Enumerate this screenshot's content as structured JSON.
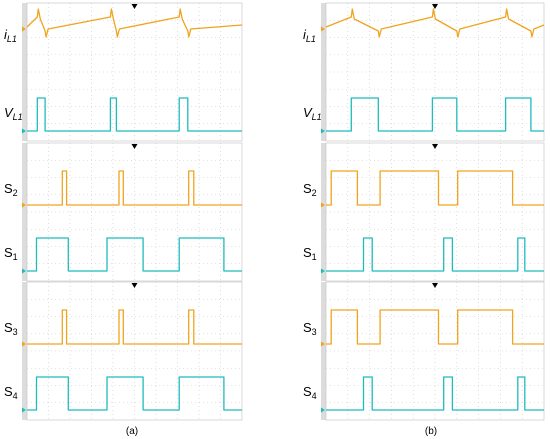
{
  "chart_data": [
    {
      "type": "line",
      "panel": "a",
      "caption": "(a)",
      "plots": [
        {
          "signals": [
            {
              "label": "iL1",
              "base": "i",
              "sub": "L1",
              "italic": true,
              "color": "#f0a31e",
              "shape": "ripple",
              "edges_on": [
                0.42,
                2.08,
                3.74
              ],
              "edges_off": [
                0.24,
                1.94,
                3.54
              ]
            },
            {
              "label": "VL1",
              "base": "V",
              "sub": "L1",
              "italic": true,
              "color": "#1fbcbc",
              "shape": "pulse",
              "pulses": [
                [
                  0.42,
                  0.24
                ],
                [
                  2.08,
                  1.94
                ],
                [
                  3.74,
                  3.54
                ]
              ]
            }
          ]
        },
        {
          "signals": [
            {
              "label": "S2",
              "base": "S",
              "sub": "2",
              "italic": false,
              "color": "#f0a31e",
              "shape": "pulse",
              "pulses": [
                [
                  0.92,
                  0.82
                ],
                [
                  2.24,
                  2.14
                ],
                [
                  3.88,
                  3.76
                ]
              ]
            },
            {
              "label": "S1",
              "base": "S",
              "sub": "1",
              "italic": false,
              "color": "#1fbcbc",
              "shape": "pulse",
              "pulses": [
                [
                  0.22,
                  0.96
                ],
                [
                  1.86,
                  2.7
                ],
                [
                  3.54,
                  4.58
                ]
              ]
            }
          ]
        },
        {
          "signals": [
            {
              "label": "S3",
              "base": "S",
              "sub": "3",
              "italic": false,
              "color": "#f0a31e",
              "shape": "pulse",
              "pulses": [
                [
                  0.92,
                  0.82
                ],
                [
                  2.24,
                  2.14
                ],
                [
                  3.88,
                  3.76
                ]
              ]
            },
            {
              "label": "S4",
              "base": "S",
              "sub": "4",
              "italic": false,
              "color": "#1fbcbc",
              "shape": "pulse",
              "pulses": [
                [
                  0.22,
                  0.96
                ],
                [
                  1.86,
                  2.7
                ],
                [
                  3.54,
                  4.58
                ]
              ]
            }
          ]
        }
      ]
    },
    {
      "type": "line",
      "panel": "b",
      "caption": "(b)",
      "plots": [
        {
          "signals": [
            {
              "label": "iL1",
              "base": "i",
              "sub": "L1",
              "italic": true,
              "color": "#f0a31e",
              "shape": "ripple",
              "edges_on": [
                1.2,
                3.0,
                4.7
              ],
              "edges_off": [
                0.58,
                2.44,
                4.12
              ]
            },
            {
              "label": "VL1",
              "base": "V",
              "sub": "L1",
              "italic": true,
              "color": "#1fbcbc",
              "shape": "pulse",
              "pulses": [
                [
                  1.2,
                  0.58
                ],
                [
                  3.0,
                  2.44
                ],
                [
                  4.7,
                  4.12
                ]
              ]
            }
          ]
        },
        {
          "signals": [
            {
              "label": "S2",
              "base": "S",
              "sub": "2",
              "italic": false,
              "color": "#f0a31e",
              "shape": "pulse",
              "pulses": [
                [
                  0.12,
                  0.72
                ],
                [
                  1.24,
                  2.58
                ],
                [
                  3.02,
                  4.28
                ]
              ]
            },
            {
              "label": "S1",
              "base": "S",
              "sub": "1",
              "italic": false,
              "color": "#1fbcbc",
              "shape": "pulse",
              "pulses": [
                [
                  0.86,
                  1.06
                ],
                [
                  2.7,
                  2.9
                ],
                [
                  4.4,
                  4.56
                ]
              ]
            }
          ]
        },
        {
          "signals": [
            {
              "label": "S3",
              "base": "S",
              "sub": "3",
              "italic": false,
              "color": "#f0a31e",
              "shape": "pulse",
              "pulses": [
                [
                  0.12,
                  0.72
                ],
                [
                  1.24,
                  2.58
                ],
                [
                  3.02,
                  4.28
                ]
              ]
            },
            {
              "label": "S4",
              "base": "S",
              "sub": "4",
              "italic": false,
              "color": "#1fbcbc",
              "shape": "pulse",
              "pulses": [
                [
                  0.86,
                  1.06
                ],
                [
                  2.7,
                  2.9
                ],
                [
                  4.4,
                  4.56
                ]
              ]
            }
          ]
        }
      ]
    }
  ]
}
